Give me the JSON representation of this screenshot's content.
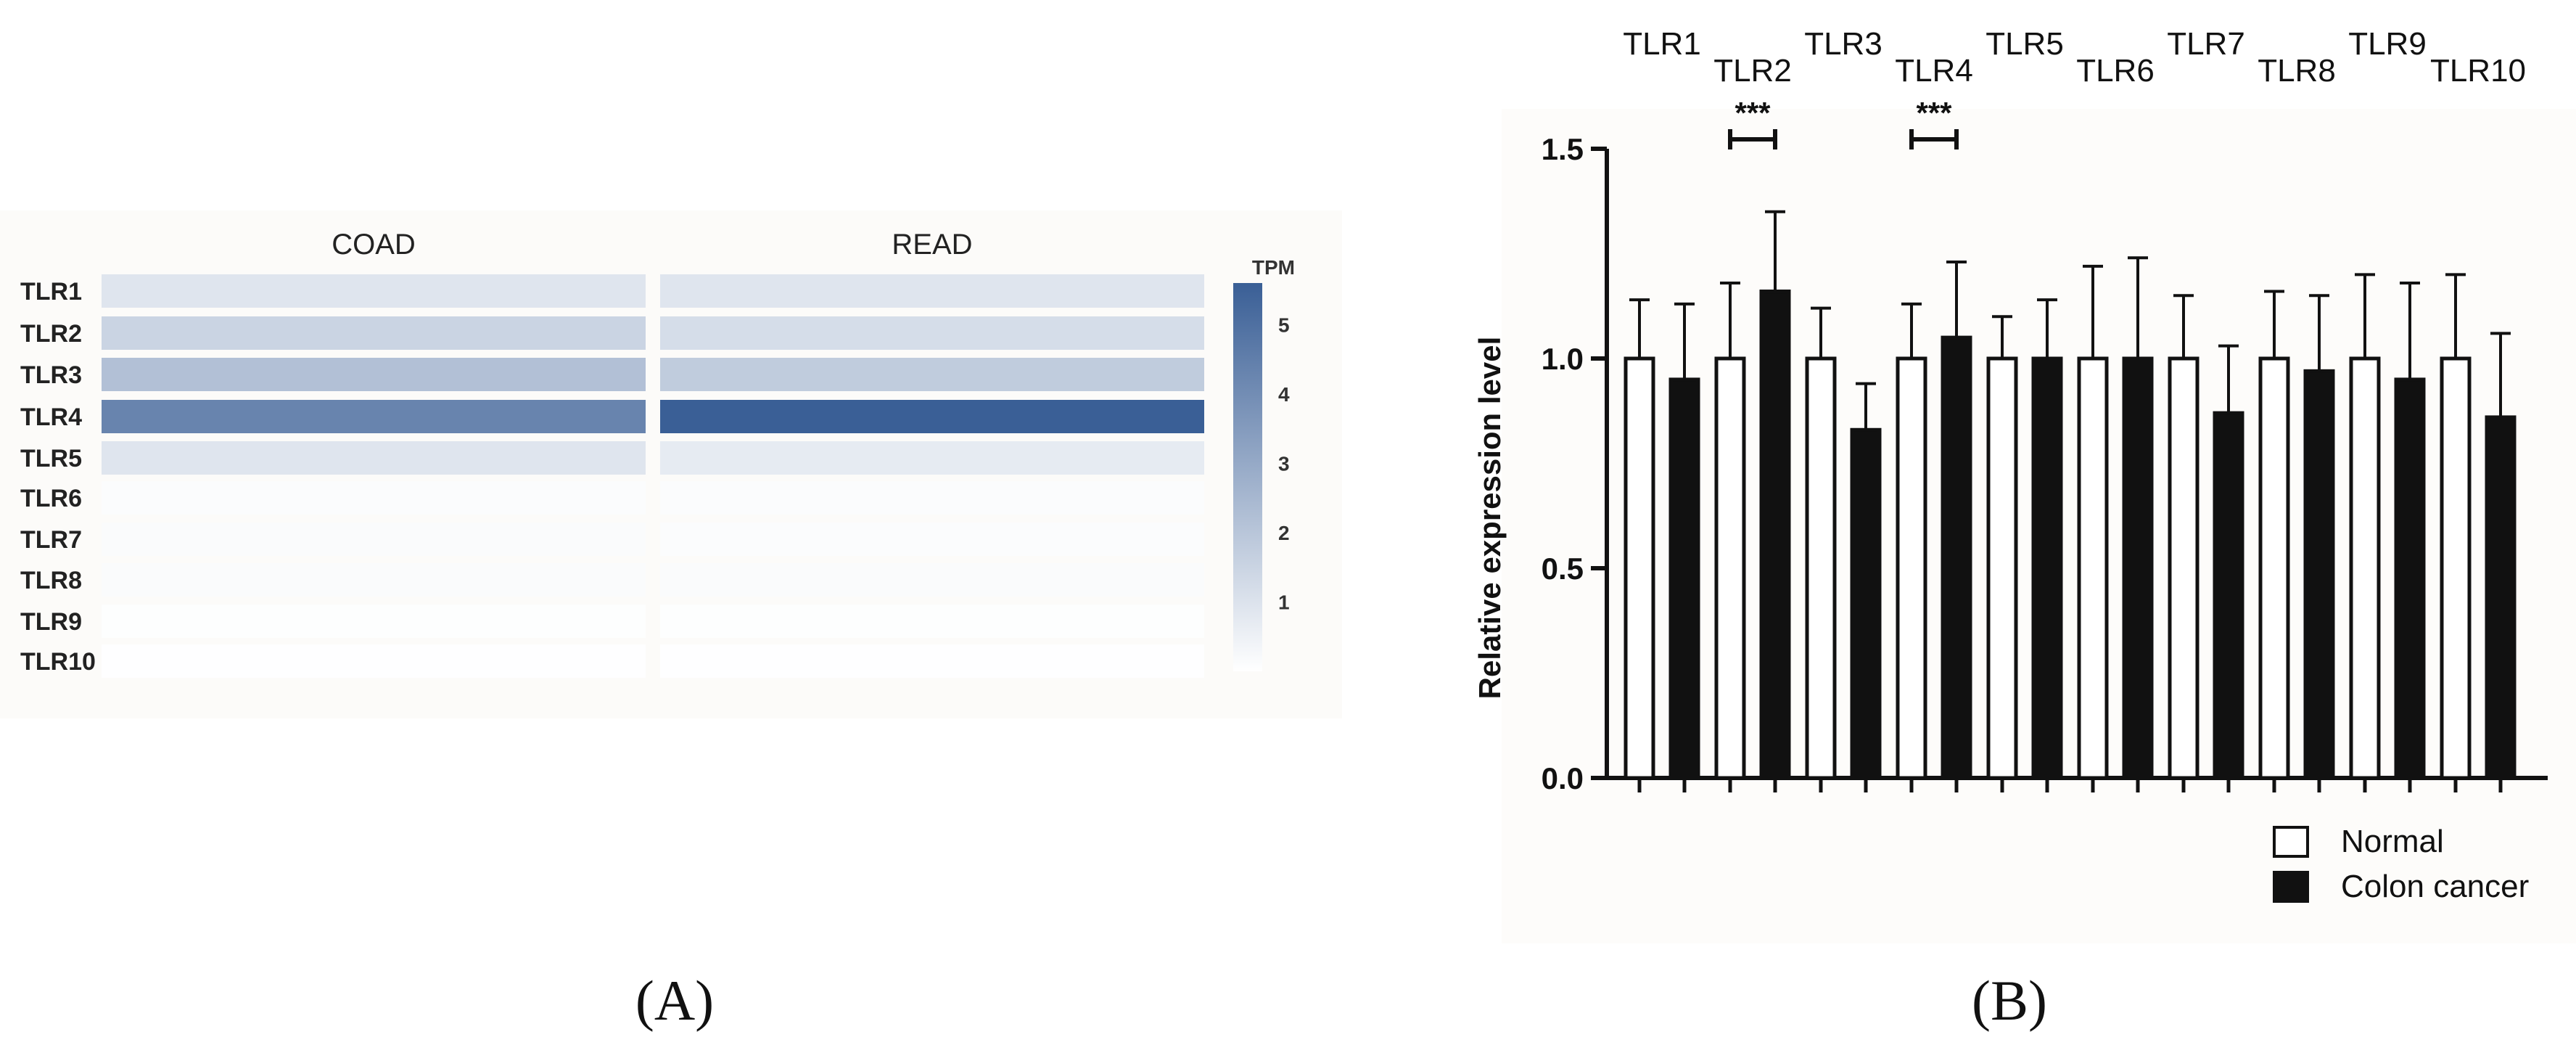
{
  "panels": {
    "left": "(A)",
    "right": "(B)"
  },
  "chart_data": [
    {
      "type": "heatmap",
      "columns": [
        "COAD",
        "READ"
      ],
      "rows": [
        "TLR1",
        "TLR2",
        "TLR3",
        "TLR4",
        "TLR5",
        "TLR6",
        "TLR7",
        "TLR8",
        "TLR9",
        "TLR10"
      ],
      "values": [
        [
          0.9,
          0.9
        ],
        [
          1.5,
          1.2
        ],
        [
          2.2,
          1.8
        ],
        [
          4.3,
          5.6
        ],
        [
          0.9,
          0.7
        ],
        [
          0.1,
          0.1
        ],
        [
          0.15,
          0.1
        ],
        [
          0.15,
          0.15
        ],
        [
          0.05,
          0.05
        ],
        [
          0.02,
          0.02
        ]
      ],
      "colorbar": {
        "title": "TPM",
        "ticks": [
          1,
          2,
          3,
          4,
          5
        ],
        "range": [
          0,
          5.6
        ],
        "color_low": "#ffffff",
        "color_high": "#3a5f96"
      }
    },
    {
      "type": "bar",
      "categories": [
        "TLR1",
        "TLR2",
        "TLR3",
        "TLR4",
        "TLR5",
        "TLR6",
        "TLR7",
        "TLR8",
        "TLR9",
        "TLR10"
      ],
      "series": [
        {
          "name": "Normal",
          "color": "#ffffff",
          "values": [
            1.0,
            1.0,
            1.0,
            1.0,
            1.0,
            1.0,
            1.0,
            1.0,
            1.0,
            1.0
          ],
          "errors": [
            0.14,
            0.18,
            0.12,
            0.13,
            0.1,
            0.22,
            0.15,
            0.16,
            0.2,
            0.2
          ]
        },
        {
          "name": "Colon cancer",
          "color": "#111111",
          "values": [
            0.95,
            1.16,
            0.83,
            1.05,
            1.0,
            1.0,
            0.87,
            0.97,
            0.95,
            0.86
          ],
          "errors": [
            0.18,
            0.19,
            0.11,
            0.18,
            0.14,
            0.24,
            0.16,
            0.18,
            0.23,
            0.2
          ]
        }
      ],
      "ylabel": "Relative expression level",
      "ylim": [
        0,
        1.5
      ],
      "yticks": [
        "0.0",
        "0.5",
        "1.0",
        "1.5"
      ],
      "significance": [
        {
          "category": "TLR2",
          "label": "***"
        },
        {
          "category": "TLR4",
          "label": "***"
        }
      ],
      "legend": {
        "position": "bottom-right"
      }
    }
  ]
}
